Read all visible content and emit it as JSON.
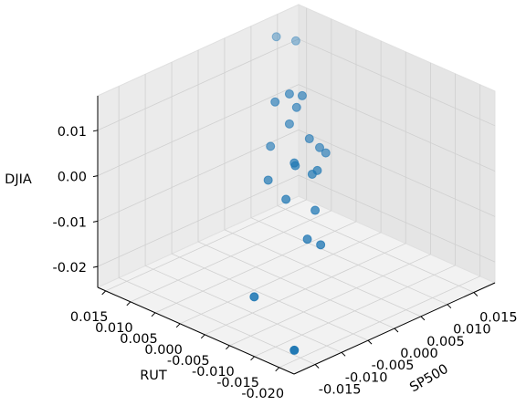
{
  "chart_data": {
    "type": "scatter3d",
    "xlabel": "SP500",
    "ylabel": "RUT",
    "zlabel": "DJIA",
    "color": "#1f77b4",
    "grid": true,
    "x": [
      0.0131,
      0.015,
      0.0031,
      0.0043,
      0.0017,
      0.0038,
      0.0031,
      0.005,
      0.0013,
      0.006,
      0.0066,
      -0.0002,
      -0.0001,
      0.002,
      0.0015,
      -0.0027,
      -0.0029,
      -0.0001,
      -0.0027,
      -0.0014,
      -0.0135,
      -0.0152
    ],
    "y": [
      0.0148,
      0.0129,
      0.0015,
      0.0002,
      0.0029,
      0.0008,
      0.0015,
      -0.0005,
      0.0034,
      -0.0015,
      -0.0021,
      -0.003,
      -0.0031,
      -0.0053,
      -0.0048,
      -0.0004,
      -0.0042,
      -0.0071,
      -0.0083,
      -0.0096,
      -0.0091,
      -0.019
    ],
    "z": [
      0.0145,
      0.0135,
      0.0136,
      0.0132,
      0.0119,
      0.0106,
      0.007,
      0.0037,
      0.0021,
      0.0017,
      0.0005,
      0.0023,
      0.0017,
      0.0006,
      -0.0002,
      -0.0014,
      -0.0037,
      -0.0062,
      -0.0106,
      -0.0119,
      -0.0172,
      -0.0233
    ],
    "xlim": [
      -0.019,
      0.019
    ],
    "ylim": [
      -0.023,
      0.0166
    ],
    "zlim": [
      -0.0246,
      0.0176
    ],
    "xticks": [
      -0.015,
      {
        "value": -0.01,
        "label": "-0.010"
      },
      -0.005,
      {
        "value": 0,
        "label": "0.000"
      },
      0.005,
      {
        "value": 0.01,
        "label": "0.010"
      },
      0.015
    ],
    "yticks": [
      {
        "value": -0.02,
        "label": "-0.020"
      },
      -0.015,
      {
        "value": -0.01,
        "label": "-0.010"
      },
      -0.005,
      {
        "value": 0,
        "label": "0.000"
      },
      0.005,
      {
        "value": 0.01,
        "label": "0.010"
      },
      0.015
    ],
    "zticks": [
      -0.02,
      -0.01,
      {
        "value": 0,
        "label": "0.00"
      },
      0.01
    ]
  }
}
